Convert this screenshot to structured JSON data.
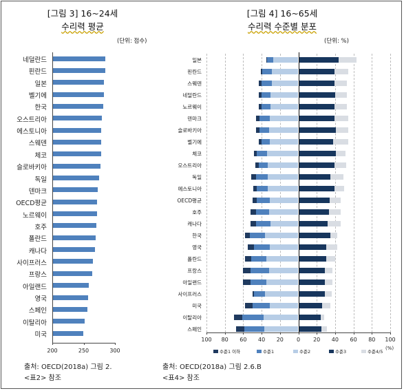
{
  "chart_data": [
    {
      "type": "bar",
      "orientation": "horizontal",
      "title": "[그림 3] 16~24세",
      "subtitle": "수리력 평균",
      "unit": "(단위: 점수)",
      "categories": [
        "네덜란드",
        "핀란드",
        "일본",
        "벨기에",
        "한국",
        "오스트리아",
        "에스토니아",
        "스웨덴",
        "체코",
        "슬로바키아",
        "독일",
        "덴마크",
        "OECD평균",
        "노르웨이",
        "호주",
        "폴란드",
        "캐나다",
        "사이프러스",
        "프랑스",
        "아일랜드",
        "영국",
        "스페인",
        "이탈리아",
        "미국"
      ],
      "values": [
        285,
        285,
        282,
        282,
        281,
        279,
        278,
        278,
        278,
        277,
        275,
        273,
        271,
        271,
        270,
        269,
        268,
        265,
        264,
        258,
        257,
        256,
        252,
        249
      ],
      "xlim": [
        200,
        300
      ],
      "xticks": [
        "200",
        "250",
        "300"
      ],
      "color": "#4f81bd",
      "source": "출처: OECD(2018a) 그림 2.",
      "note": "<표2> 참조"
    },
    {
      "type": "bar",
      "orientation": "horizontal",
      "stacked": "diverging",
      "title": "[그림 4] 16~65세",
      "subtitle": "수리력 수준별 분포",
      "unit": "(단위: %)",
      "categories": [
        "일본",
        "핀란드",
        "스웨덴",
        "네덜란드",
        "노르웨이",
        "덴마크",
        "슬로바키아",
        "벨기에",
        "체코",
        "오스트리아",
        "독일",
        "에스토니아",
        "OECD평균",
        "호주",
        "캐나다",
        "한국",
        "영국",
        "폴란드",
        "프랑스",
        "아일랜드",
        "사이프러스",
        "미국",
        "이탈리아",
        "스페인"
      ],
      "series": [
        {
          "name": "수준1 이하",
          "color": "#1f3a5f",
          "values": [
            1,
            2,
            3,
            3,
            3,
            4,
            4,
            3,
            3,
            4,
            5,
            4,
            5,
            6,
            6,
            5,
            7,
            7,
            8,
            8,
            2,
            8,
            9,
            9
          ]
        },
        {
          "name": "수준1",
          "color": "#4f81bd",
          "values": [
            7,
            10,
            11,
            10,
            10,
            11,
            10,
            9,
            11,
            10,
            13,
            12,
            14,
            14,
            16,
            17,
            17,
            16,
            20,
            17,
            12,
            19,
            23,
            22
          ]
        },
        {
          "name": "수준2",
          "color": "#b7cde6",
          "values": [
            27,
            29,
            29,
            30,
            30,
            31,
            32,
            31,
            34,
            33,
            33,
            33,
            31,
            32,
            30,
            36,
            31,
            35,
            32,
            35,
            36,
            31,
            38,
            37
          ]
        },
        {
          "name": "수준3",
          "color": "#17365d",
          "values": [
            44,
            39,
            39,
            40,
            39,
            39,
            41,
            38,
            41,
            39,
            35,
            39,
            34,
            33,
            32,
            35,
            30,
            30,
            29,
            29,
            29,
            26,
            24,
            25
          ]
        },
        {
          "name": "수준4/5",
          "color": "#d9dde3",
          "values": [
            19,
            15,
            14,
            13,
            14,
            15,
            13,
            16,
            10,
            13,
            14,
            11,
            12,
            13,
            14,
            7,
            12,
            10,
            8,
            8,
            7,
            9,
            4,
            6
          ]
        }
      ],
      "xlim": [
        -100,
        100
      ],
      "xticks": [
        "100",
        "80",
        "60",
        "40",
        "20",
        "0",
        "20",
        "40",
        "60",
        "80",
        "100"
      ],
      "xunit": "(%)",
      "grid": true,
      "legend": "bottom",
      "source": "출처: OECD(2018a) 그림 2.6.B",
      "note": "<표4> 참조"
    }
  ]
}
